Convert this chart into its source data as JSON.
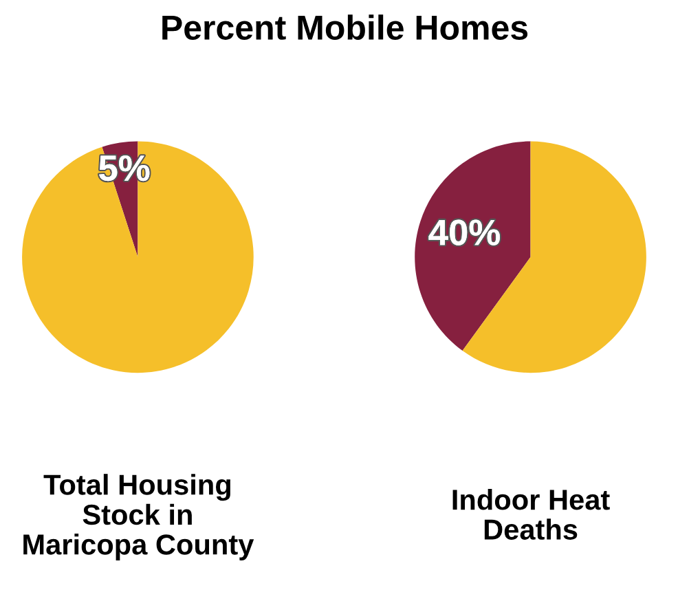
{
  "chart_data": [
    {
      "type": "pie",
      "title": "Percent Mobile Homes",
      "xlabel": "Total Housing\nStock in\nMaricopa County",
      "categories": [
        null,
        null
      ],
      "values": [
        5,
        95
      ],
      "colors": [
        "#86203f",
        "#f5bf2a"
      ],
      "value_labels": [
        "5%",
        null
      ]
    },
    {
      "type": "pie",
      "xlabel": "Indoor Heat\nDeaths",
      "categories": [
        null,
        null
      ],
      "values": [
        40,
        60
      ],
      "colors": [
        "#86203f",
        "#f5bf2a"
      ],
      "value_labels": [
        "40%",
        null
      ]
    }
  ]
}
